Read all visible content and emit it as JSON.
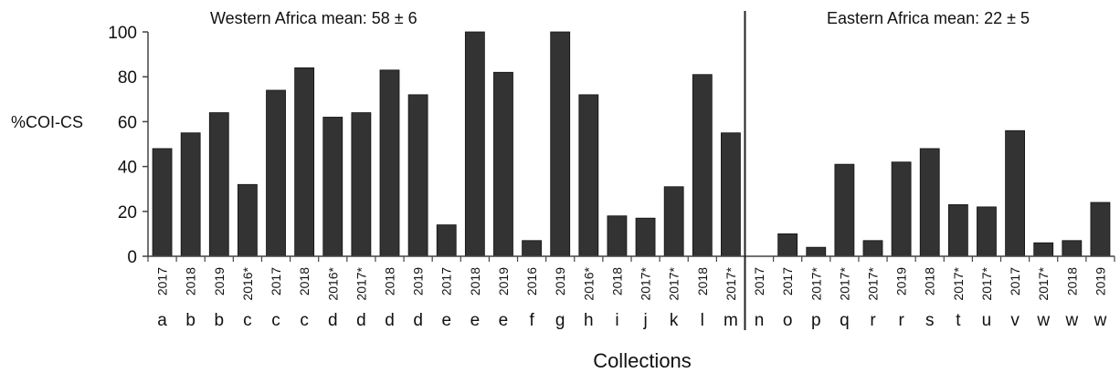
{
  "chart_data": {
    "type": "bar",
    "ylabel": "%COI-CS",
    "xlabel": "Collections",
    "ylim": [
      0,
      100
    ],
    "yticks": [
      0,
      20,
      40,
      60,
      80,
      100
    ],
    "grid": false,
    "annotations": [
      {
        "text": "Western Africa mean:  58 ± 6",
        "region": "western"
      },
      {
        "text": "Eastern Africa mean:  22 ± 5",
        "region": "eastern"
      }
    ],
    "categories": [
      {
        "year": "2017",
        "site": "a"
      },
      {
        "year": "2018",
        "site": "b"
      },
      {
        "year": "2019",
        "site": "b"
      },
      {
        "year": "2016*",
        "site": "c"
      },
      {
        "year": "2017",
        "site": "c"
      },
      {
        "year": "2018",
        "site": "c"
      },
      {
        "year": "2016*",
        "site": "d"
      },
      {
        "year": "2017*",
        "site": "d"
      },
      {
        "year": "2018",
        "site": "d"
      },
      {
        "year": "2019",
        "site": "d"
      },
      {
        "year": "2017",
        "site": "e"
      },
      {
        "year": "2018",
        "site": "e"
      },
      {
        "year": "2019",
        "site": "e"
      },
      {
        "year": "2016",
        "site": "f"
      },
      {
        "year": "2019",
        "site": "g"
      },
      {
        "year": "2016*",
        "site": "h"
      },
      {
        "year": "2018",
        "site": "i"
      },
      {
        "year": "2017*",
        "site": "j"
      },
      {
        "year": "2017*",
        "site": "k"
      },
      {
        "year": "2018",
        "site": "l"
      },
      {
        "year": "2017*",
        "site": "m"
      },
      {
        "year": "2017",
        "site": "n"
      },
      {
        "year": "2017",
        "site": "o"
      },
      {
        "year": "2017*",
        "site": "p"
      },
      {
        "year": "2017*",
        "site": "q"
      },
      {
        "year": "2017*",
        "site": "r"
      },
      {
        "year": "2019",
        "site": "r"
      },
      {
        "year": "2018",
        "site": "s"
      },
      {
        "year": "2017*",
        "site": "t"
      },
      {
        "year": "2017*",
        "site": "u"
      },
      {
        "year": "2017",
        "site": "v"
      },
      {
        "year": "2017*",
        "site": "w"
      },
      {
        "year": "2018",
        "site": "w"
      },
      {
        "year": "2019",
        "site": "w"
      }
    ],
    "values": [
      48,
      55,
      64,
      32,
      74,
      84,
      62,
      64,
      83,
      72,
      14,
      100,
      82,
      7,
      100,
      72,
      18,
      17,
      31,
      81,
      55,
      0,
      10,
      4,
      41,
      7,
      42,
      48,
      23,
      22,
      56,
      6,
      7,
      24
    ],
    "divider_after_index": 20,
    "bar_color": "#333333"
  }
}
